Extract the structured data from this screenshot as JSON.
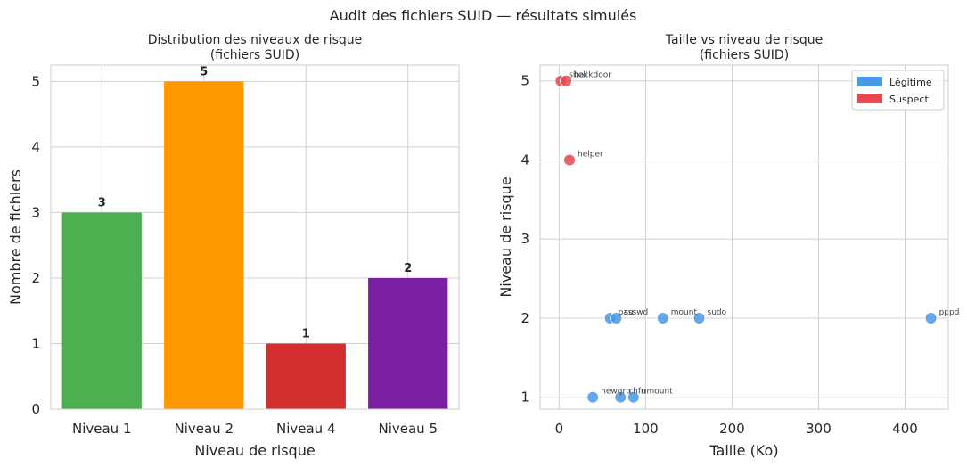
{
  "suptitle": "Audit des fichiers SUID — résultats simulés",
  "colors": {
    "level1": "#4caf50",
    "level2": "#ff9800",
    "level4": "#d32f2f",
    "level5": "#7b1fa2",
    "legit": "#4a98e8",
    "suspect": "#e8474d"
  },
  "chart_data": [
    {
      "type": "bar",
      "title_line1": "Distribution des niveaux de risque",
      "title_line2": "(fichiers SUID)",
      "xlabel": "Niveau de risque",
      "ylabel": "Nombre de fichiers",
      "categories": [
        "Niveau 1",
        "Niveau 2",
        "Niveau 4",
        "Niveau 5"
      ],
      "values": [
        3,
        5,
        1,
        2
      ],
      "bar_colors": [
        "#4caf50",
        "#ff9800",
        "#d32f2f",
        "#7b1fa2"
      ],
      "ylim": [
        0,
        5.25
      ],
      "yticks": [
        0,
        1,
        2,
        3,
        4,
        5
      ],
      "grid": true
    },
    {
      "type": "scatter",
      "title_line1": "Taille vs niveau de risque",
      "title_line2": "(fichiers SUID)",
      "xlabel": "Taille (Ko)",
      "ylabel": "Niveau de risque",
      "xlim": [
        -22,
        450
      ],
      "ylim": [
        0.85,
        5.2
      ],
      "xticks": [
        0,
        100,
        200,
        300,
        400
      ],
      "yticks": [
        1,
        2,
        3,
        4,
        5
      ],
      "grid": true,
      "legend": {
        "position": "top-right",
        "entries": [
          {
            "label": "Légitime",
            "color": "#4a98e8"
          },
          {
            "label": "Suspect",
            "color": "#e8474d"
          }
        ]
      },
      "points": [
        {
          "name": "shell",
          "x": 2,
          "y": 5,
          "group": "suspect"
        },
        {
          "name": "backdoor",
          "x": 8,
          "y": 5,
          "group": "suspect"
        },
        {
          "name": "helper",
          "x": 12,
          "y": 4,
          "group": "suspect"
        },
        {
          "name": "passwd",
          "x": 59,
          "y": 2,
          "group": "legit"
        },
        {
          "name": "su",
          "x": 66,
          "y": 2,
          "group": "legit"
        },
        {
          "name": "mount",
          "x": 120,
          "y": 2,
          "group": "legit"
        },
        {
          "name": "sudo",
          "x": 162,
          "y": 2,
          "group": "legit"
        },
        {
          "name": "pppd",
          "x": 430,
          "y": 2,
          "group": "legit"
        },
        {
          "name": "newgrp",
          "x": 39,
          "y": 1,
          "group": "legit"
        },
        {
          "name": "chfn",
          "x": 71,
          "y": 1,
          "group": "legit"
        },
        {
          "name": "umount",
          "x": 86,
          "y": 1,
          "group": "legit"
        }
      ]
    }
  ]
}
